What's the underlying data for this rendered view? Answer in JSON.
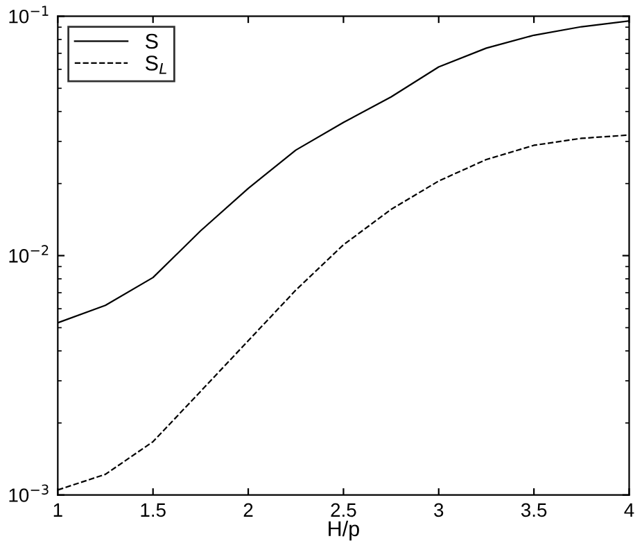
{
  "chart_data": {
    "type": "line",
    "xlabel": "H/p",
    "log": "y",
    "grid": false,
    "legend": "top left",
    "marker": "none",
    "x": [
      1,
      1.25,
      1.5,
      1.75,
      2,
      2.25,
      2.5,
      2.75,
      3,
      3.25,
      3.5,
      3.75,
      4
    ],
    "series": [
      {
        "name": "S",
        "color": "#000000",
        "line_style": "solid",
        "values": [
          0.00524,
          0.0062,
          0.0081,
          0.0127,
          0.0191,
          0.0276,
          0.036,
          0.046,
          0.0614,
          0.0736,
          0.0833,
          0.0904,
          0.0955
        ]
      },
      {
        "name": "S$_{L}$",
        "color": "#000000",
        "line_style": "dashed",
        "values": [
          0.00105,
          0.00122,
          0.00167,
          0.00271,
          0.00441,
          0.00718,
          0.0111,
          0.0156,
          0.0205,
          0.0252,
          0.0289,
          0.0309,
          0.0319
        ]
      }
    ],
    "xlim": [
      1,
      4
    ],
    "xticks": [
      1,
      1.5,
      2,
      2.5,
      3,
      3.5,
      4
    ],
    "ylim": [
      0.001,
      0.1
    ],
    "yticks": [
      {
        "value": 0.001,
        "label": "10$^{−3}$"
      },
      {
        "value": 0.01,
        "label": "10$^{−2}$"
      },
      {
        "value": 0.1,
        "label": "10$^{−1}$"
      }
    ]
  }
}
